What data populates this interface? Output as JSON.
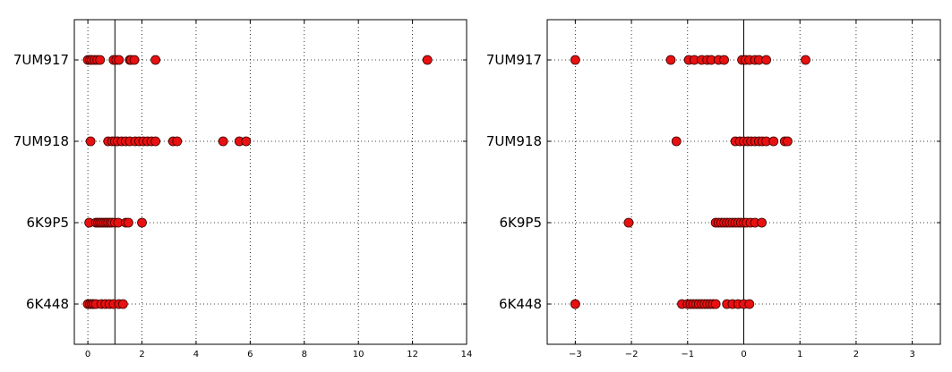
{
  "marker_color": "#e81010",
  "marker_edge": "#3a0000",
  "chart_data": [
    {
      "type": "scatter",
      "xlim": [
        -0.5,
        14
      ],
      "xticks": [
        0,
        2,
        4,
        6,
        8,
        10,
        12,
        14
      ],
      "tick_labels": [
        "0",
        "2",
        "4",
        "6",
        "8",
        "10",
        "12",
        "14"
      ],
      "vline": 1,
      "grid": true,
      "categories": [
        "7UM917",
        "7UM918",
        "6K9P5",
        "6K448"
      ],
      "series": [
        {
          "category": "7UM917",
          "x": [
            0.0,
            0.08,
            0.15,
            0.25,
            0.35,
            0.45,
            0.95,
            1.05,
            1.15,
            1.55,
            1.6,
            1.72,
            2.5,
            12.55
          ]
        },
        {
          "category": "7UM918",
          "x": [
            0.1,
            0.75,
            0.9,
            1.0,
            1.1,
            1.25,
            1.4,
            1.55,
            1.75,
            1.9,
            2.05,
            2.2,
            2.35,
            2.5,
            3.15,
            3.3,
            5.0,
            5.6,
            5.85
          ]
        },
        {
          "category": "6K9P5",
          "x": [
            0.05,
            0.3,
            0.38,
            0.45,
            0.52,
            0.6,
            0.68,
            0.75,
            0.83,
            0.9,
            1.0,
            1.12,
            1.4,
            1.5,
            2.0
          ]
        },
        {
          "category": "6K448",
          "x": [
            0.0,
            0.08,
            0.15,
            0.22,
            0.3,
            0.5,
            0.65,
            0.8,
            0.95,
            1.15,
            1.3
          ]
        }
      ]
    },
    {
      "type": "scatter",
      "xlim": [
        -3.5,
        3.5
      ],
      "xticks": [
        -3,
        -2,
        -1,
        0,
        1,
        2,
        3
      ],
      "tick_labels": [
        "−3",
        "−2",
        "−1",
        "0",
        "1",
        "2",
        "3"
      ],
      "vline": 0,
      "grid": true,
      "categories": [
        "7UM917",
        "7UM918",
        "6K9P5",
        "6K448"
      ],
      "series": [
        {
          "category": "7UM917",
          "x": [
            -3.0,
            -1.3,
            -0.98,
            -0.88,
            -0.75,
            -0.65,
            -0.58,
            -0.45,
            -0.35,
            -0.03,
            0.03,
            0.1,
            0.2,
            0.27,
            0.4,
            1.1
          ]
        },
        {
          "category": "7UM918",
          "x": [
            -1.2,
            -0.15,
            -0.07,
            0.0,
            0.07,
            0.13,
            0.2,
            0.27,
            0.33,
            0.4,
            0.53,
            0.73,
            0.78
          ]
        },
        {
          "category": "6K9P5",
          "x": [
            -2.05,
            -0.5,
            -0.45,
            -0.4,
            -0.35,
            -0.3,
            -0.25,
            -0.2,
            -0.15,
            -0.1,
            -0.05,
            0.0,
            0.05,
            0.12,
            0.2,
            0.32
          ]
        },
        {
          "category": "6K448",
          "x": [
            -3.0,
            -1.1,
            -1.0,
            -0.95,
            -0.9,
            -0.85,
            -0.8,
            -0.75,
            -0.7,
            -0.65,
            -0.6,
            -0.55,
            -0.5,
            -0.3,
            -0.2,
            -0.1,
            0.0,
            0.1
          ]
        }
      ]
    }
  ]
}
